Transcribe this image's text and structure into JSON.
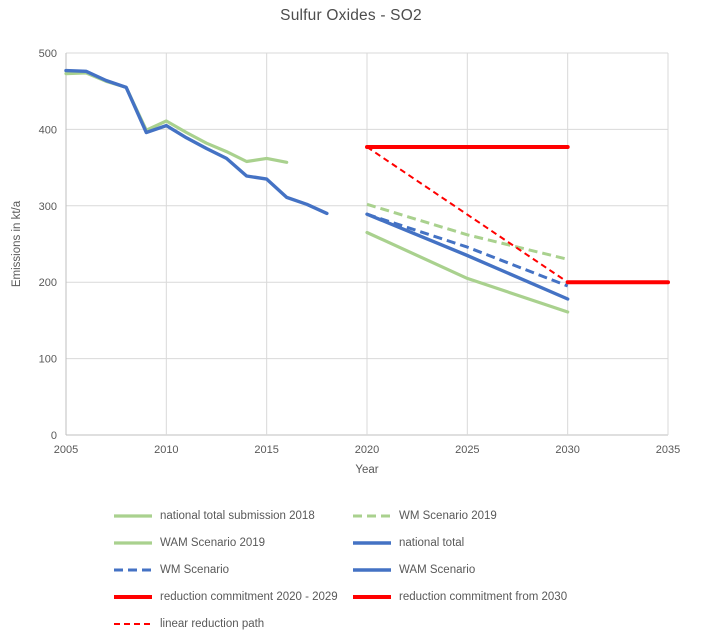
{
  "chart_data": {
    "type": "line",
    "title": "Sulfur Oxides - SO2",
    "xlabel": "Year",
    "ylabel": "Emissions in kt/a",
    "unit": "kt/a",
    "xlim": [
      2005,
      2035
    ],
    "ylim": [
      0,
      500
    ],
    "xticks": [
      2005,
      2010,
      2015,
      2020,
      2025,
      2030,
      2035
    ],
    "yticks": [
      0,
      100,
      200,
      300,
      400,
      500
    ],
    "grid": true,
    "legend_position": "bottom",
    "colors": {
      "green": "#A9D18E",
      "blue": "#4472C4",
      "red": "#FF0000",
      "gridline": "#D9D9D9",
      "axisline": "#BFBFBF",
      "text": "#595959"
    },
    "series": [
      {
        "name": "national total submission 2018",
        "color": "green",
        "dash": null,
        "width": 3.2,
        "points": [
          [
            2005,
            473
          ],
          [
            2006,
            474
          ],
          [
            2007,
            463
          ],
          [
            2008,
            455
          ],
          [
            2009,
            399
          ],
          [
            2010,
            411
          ],
          [
            2011,
            396
          ],
          [
            2012,
            382
          ],
          [
            2013,
            371
          ],
          [
            2014,
            358
          ],
          [
            2015,
            362
          ],
          [
            2016,
            357
          ]
        ]
      },
      {
        "name": "WM Scenario 2019",
        "color": "green",
        "dash": "9,5",
        "width": 3,
        "points": [
          [
            2020,
            302
          ],
          [
            2025,
            262
          ],
          [
            2030,
            230
          ]
        ]
      },
      {
        "name": "WAM Scenario 2019",
        "color": "green",
        "dash": null,
        "width": 3.2,
        "points": [
          [
            2020,
            265
          ],
          [
            2025,
            205
          ],
          [
            2030,
            161
          ]
        ]
      },
      {
        "name": "national total",
        "color": "blue",
        "dash": null,
        "width": 3.4,
        "points": [
          [
            2005,
            477
          ],
          [
            2006,
            476
          ],
          [
            2007,
            464
          ],
          [
            2008,
            455
          ],
          [
            2009,
            396
          ],
          [
            2010,
            405
          ],
          [
            2011,
            389
          ],
          [
            2012,
            375
          ],
          [
            2013,
            362
          ],
          [
            2014,
            339
          ],
          [
            2015,
            335
          ],
          [
            2016,
            311
          ],
          [
            2017,
            302
          ],
          [
            2018,
            290
          ]
        ]
      },
      {
        "name": "WM Scenario",
        "color": "blue",
        "dash": "9,5",
        "width": 3,
        "points": [
          [
            2020,
            289
          ],
          [
            2025,
            246
          ],
          [
            2030,
            195
          ]
        ]
      },
      {
        "name": "WAM Scenario",
        "color": "blue",
        "dash": null,
        "width": 3.4,
        "points": [
          [
            2020,
            289
          ],
          [
            2025,
            235
          ],
          [
            2030,
            178
          ]
        ]
      },
      {
        "name": "reduction commitment 2020 - 2029",
        "color": "red",
        "dash": null,
        "width": 4,
        "points": [
          [
            2020,
            377
          ],
          [
            2030,
            377
          ]
        ]
      },
      {
        "name": "reduction commitment from 2030",
        "color": "red",
        "dash": null,
        "width": 4,
        "points": [
          [
            2030,
            200
          ],
          [
            2035,
            200
          ]
        ]
      },
      {
        "name": "linear reduction path",
        "color": "red",
        "dash": "6,4",
        "width": 2,
        "points": [
          [
            2020,
            377
          ],
          [
            2030,
            200
          ]
        ]
      }
    ]
  }
}
